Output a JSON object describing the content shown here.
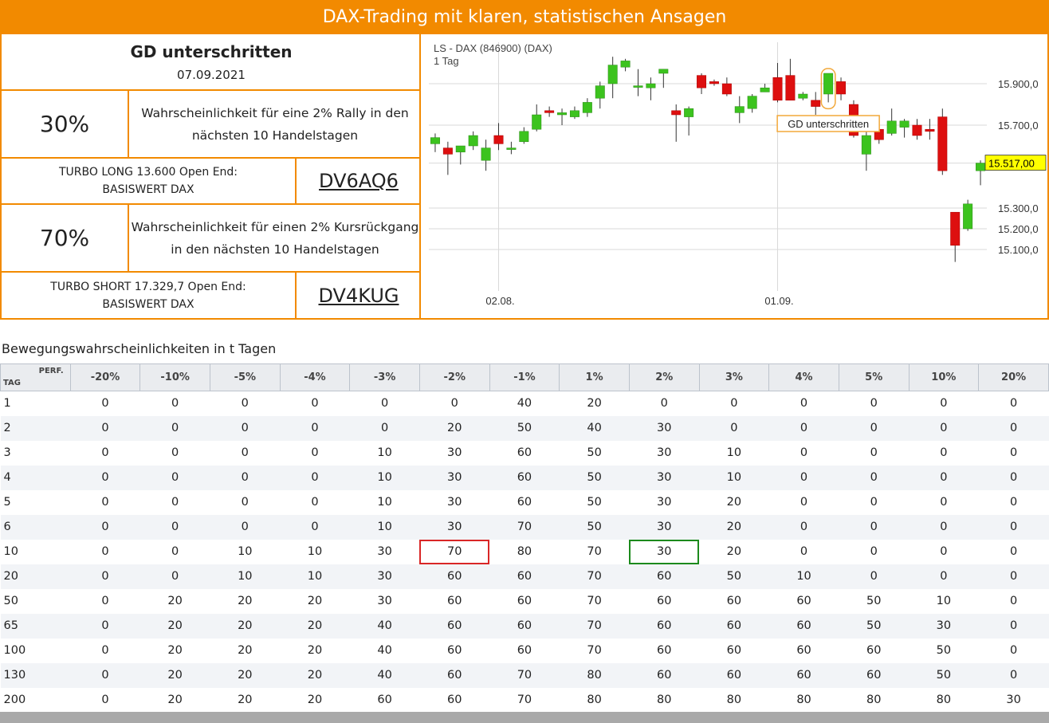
{
  "banner": {
    "title": "DAX-Trading mit klaren, statistischen Ansagen"
  },
  "signal": {
    "title": "GD unterschritten",
    "date": "07.09.2021"
  },
  "long": {
    "probability": "30%",
    "description": "Wahrscheinlichkeit für eine 2% Rally in den nächsten 10 Handelstagen",
    "turbo": "TURBO LONG 13.600 Open End:",
    "underlying": "BASISWERT DAX",
    "code": "DV6AQ6"
  },
  "short": {
    "probability": "70%",
    "description": "Wahrscheinlichkeit für einen 2% Kursrückgang in den nächsten 10 Handelstagen",
    "turbo": "TURBO SHORT 17.329,7 Open End:",
    "underlying": "BASISWERT DAX",
    "code": "DV4KUG"
  },
  "chart_data": {
    "type": "candlestick",
    "title": "LS - DAX (846900) (DAX)",
    "subtitle": "1 Tag",
    "annotation": "GD unterschritten",
    "last_price_label": "15.517,00",
    "last_price": 15517,
    "x_tick_labels": [
      "02.08.",
      "01.09."
    ],
    "x_tick_index": [
      5,
      27
    ],
    "y_tick_labels": [
      "15.900,0",
      "15.700,0",
      "15.300,0",
      "15.200,0",
      "15.100,0"
    ],
    "y_ticks": [
      15900,
      15700,
      15300,
      15200,
      15100
    ],
    "ylim": [
      14900,
      16100
    ],
    "annotation_index": 31,
    "candles": [
      {
        "o": 15610,
        "h": 15660,
        "l": 15570,
        "c": 15640
      },
      {
        "o": 15590,
        "h": 15620,
        "l": 15460,
        "c": 15560
      },
      {
        "o": 15570,
        "h": 15600,
        "l": 15510,
        "c": 15600
      },
      {
        "o": 15600,
        "h": 15670,
        "l": 15580,
        "c": 15650
      },
      {
        "o": 15530,
        "h": 15630,
        "l": 15480,
        "c": 15590
      },
      {
        "o": 15650,
        "h": 15710,
        "l": 15580,
        "c": 15610
      },
      {
        "o": 15590,
        "h": 15620,
        "l": 15560,
        "c": 15590
      },
      {
        "o": 15620,
        "h": 15690,
        "l": 15610,
        "c": 15670
      },
      {
        "o": 15680,
        "h": 15800,
        "l": 15670,
        "c": 15750
      },
      {
        "o": 15770,
        "h": 15790,
        "l": 15740,
        "c": 15760
      },
      {
        "o": 15750,
        "h": 15780,
        "l": 15700,
        "c": 15760
      },
      {
        "o": 15740,
        "h": 15790,
        "l": 15730,
        "c": 15770
      },
      {
        "o": 15760,
        "h": 15830,
        "l": 15740,
        "c": 15810
      },
      {
        "o": 15830,
        "h": 15910,
        "l": 15780,
        "c": 15890
      },
      {
        "o": 15900,
        "h": 16030,
        "l": 15830,
        "c": 15990
      },
      {
        "o": 15980,
        "h": 16020,
        "l": 15960,
        "c": 16010
      },
      {
        "o": 15890,
        "h": 15970,
        "l": 15840,
        "c": 15890
      },
      {
        "o": 15880,
        "h": 15930,
        "l": 15820,
        "c": 15900
      },
      {
        "o": 15950,
        "h": 15970,
        "l": 15880,
        "c": 15970
      },
      {
        "o": 15770,
        "h": 15800,
        "l": 15620,
        "c": 15750
      },
      {
        "o": 15740,
        "h": 15790,
        "l": 15650,
        "c": 15780
      },
      {
        "o": 15940,
        "h": 15950,
        "l": 15850,
        "c": 15880
      },
      {
        "o": 15910,
        "h": 15920,
        "l": 15890,
        "c": 15900
      },
      {
        "o": 15900,
        "h": 15930,
        "l": 15840,
        "c": 15850
      },
      {
        "o": 15760,
        "h": 15840,
        "l": 15710,
        "c": 15790
      },
      {
        "o": 15780,
        "h": 15850,
        "l": 15760,
        "c": 15840
      },
      {
        "o": 15860,
        "h": 15900,
        "l": 15860,
        "c": 15880
      },
      {
        "o": 15930,
        "h": 16000,
        "l": 15810,
        "c": 15820
      },
      {
        "o": 15940,
        "h": 16020,
        "l": 15820,
        "c": 15820
      },
      {
        "o": 15830,
        "h": 15860,
        "l": 15820,
        "c": 15850
      },
      {
        "o": 15820,
        "h": 15860,
        "l": 15750,
        "c": 15790
      },
      {
        "o": 15850,
        "h": 15950,
        "l": 15810,
        "c": 15950
      },
      {
        "o": 15910,
        "h": 15930,
        "l": 15820,
        "c": 15850
      },
      {
        "o": 15800,
        "h": 15820,
        "l": 15640,
        "c": 15650
      },
      {
        "o": 15560,
        "h": 15680,
        "l": 15480,
        "c": 15650
      },
      {
        "o": 15680,
        "h": 15700,
        "l": 15610,
        "c": 15630
      },
      {
        "o": 15660,
        "h": 15780,
        "l": 15650,
        "c": 15720
      },
      {
        "o": 15690,
        "h": 15730,
        "l": 15640,
        "c": 15720
      },
      {
        "o": 15700,
        "h": 15730,
        "l": 15630,
        "c": 15650
      },
      {
        "o": 15680,
        "h": 15730,
        "l": 15630,
        "c": 15670
      },
      {
        "o": 15740,
        "h": 15780,
        "l": 15460,
        "c": 15480
      },
      {
        "o": 15280,
        "h": 15280,
        "l": 15040,
        "c": 15120
      },
      {
        "o": 15200,
        "h": 15340,
        "l": 15190,
        "c": 15320
      },
      {
        "o": 15480,
        "h": 15530,
        "l": 15410,
        "c": 15517
      }
    ]
  },
  "table": {
    "title": "Bewegungswahrscheinlichkeiten in t Tagen",
    "corner_top": "PERF.",
    "corner_bottom": "TAG",
    "columns": [
      "-20%",
      "-10%",
      "-5%",
      "-4%",
      "-3%",
      "-2%",
      "-1%",
      "1%",
      "2%",
      "3%",
      "4%",
      "5%",
      "10%",
      "20%"
    ],
    "rows": [
      {
        "tag": "1",
        "values": [
          "0",
          "0",
          "0",
          "0",
          "0",
          "0",
          "40",
          "20",
          "0",
          "0",
          "0",
          "0",
          "0",
          "0"
        ]
      },
      {
        "tag": "2",
        "values": [
          "0",
          "0",
          "0",
          "0",
          "0",
          "20",
          "50",
          "40",
          "30",
          "0",
          "0",
          "0",
          "0",
          "0"
        ]
      },
      {
        "tag": "3",
        "values": [
          "0",
          "0",
          "0",
          "0",
          "10",
          "30",
          "60",
          "50",
          "30",
          "10",
          "0",
          "0",
          "0",
          "0"
        ]
      },
      {
        "tag": "4",
        "values": [
          "0",
          "0",
          "0",
          "0",
          "10",
          "30",
          "60",
          "50",
          "30",
          "10",
          "0",
          "0",
          "0",
          "0"
        ]
      },
      {
        "tag": "5",
        "values": [
          "0",
          "0",
          "0",
          "0",
          "10",
          "30",
          "60",
          "50",
          "30",
          "20",
          "0",
          "0",
          "0",
          "0"
        ]
      },
      {
        "tag": "6",
        "values": [
          "0",
          "0",
          "0",
          "0",
          "10",
          "30",
          "70",
          "50",
          "30",
          "20",
          "0",
          "0",
          "0",
          "0"
        ]
      },
      {
        "tag": "10",
        "values": [
          "0",
          "0",
          "10",
          "10",
          "30",
          "70",
          "80",
          "70",
          "30",
          "20",
          "0",
          "0",
          "0",
          "0"
        ]
      },
      {
        "tag": "20",
        "values": [
          "0",
          "0",
          "10",
          "10",
          "30",
          "60",
          "60",
          "70",
          "60",
          "50",
          "10",
          "0",
          "0",
          "0"
        ]
      },
      {
        "tag": "50",
        "values": [
          "0",
          "20",
          "20",
          "20",
          "30",
          "60",
          "60",
          "70",
          "60",
          "60",
          "60",
          "50",
          "10",
          "0"
        ]
      },
      {
        "tag": "65",
        "values": [
          "0",
          "20",
          "20",
          "20",
          "40",
          "60",
          "60",
          "70",
          "60",
          "60",
          "60",
          "50",
          "30",
          "0"
        ]
      },
      {
        "tag": "100",
        "values": [
          "0",
          "20",
          "20",
          "20",
          "40",
          "60",
          "60",
          "70",
          "60",
          "60",
          "60",
          "60",
          "50",
          "0"
        ]
      },
      {
        "tag": "130",
        "values": [
          "0",
          "20",
          "20",
          "20",
          "40",
          "60",
          "70",
          "80",
          "60",
          "60",
          "60",
          "60",
          "50",
          "0"
        ]
      },
      {
        "tag": "200",
        "values": [
          "0",
          "20",
          "20",
          "20",
          "60",
          "60",
          "70",
          "80",
          "80",
          "80",
          "80",
          "80",
          "80",
          "30"
        ]
      }
    ],
    "highlight_red": {
      "row": 6,
      "col": 5
    },
    "highlight_green": {
      "row": 6,
      "col": 8
    }
  },
  "colors": {
    "accent": "#f28a00",
    "candle_up": "#3cc31e",
    "candle_down": "#dd0f0f",
    "last_price_bg": "#ffff00"
  }
}
